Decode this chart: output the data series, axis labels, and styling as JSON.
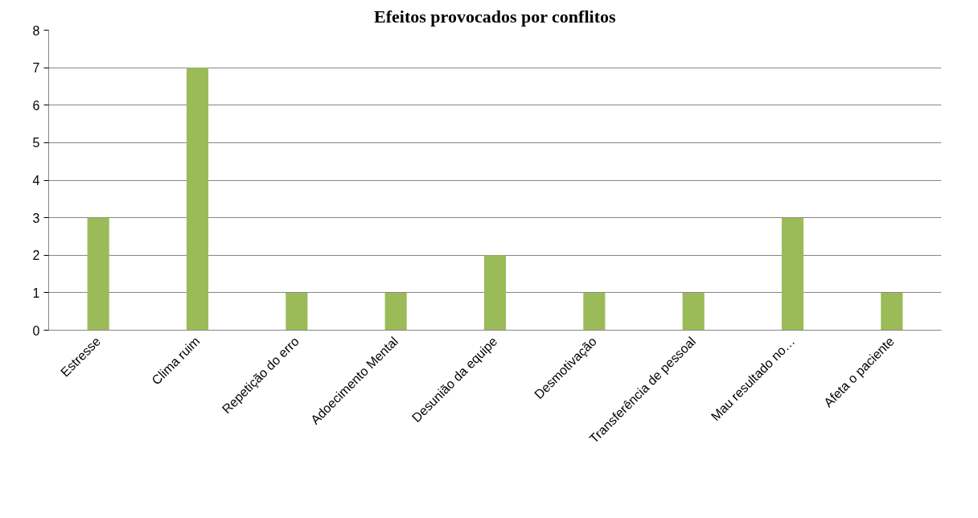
{
  "chart_data": {
    "type": "bar",
    "title": "Efeitos provocados por conflitos",
    "categories": [
      "Estresse",
      "Clima ruim",
      "Repetição do erro",
      "Adoecimento Mental",
      "Desunião da equipe",
      "Desmotivação",
      "Transferência de pessoal",
      "Mau resultado no…",
      "Afeta o paciente"
    ],
    "values": [
      3,
      7,
      1,
      1,
      2,
      1,
      1,
      3,
      1
    ],
    "color": "#9bbb59",
    "ylim": [
      0,
      8
    ],
    "yticks": [
      0,
      1,
      2,
      3,
      4,
      5,
      6,
      7,
      8
    ],
    "grid": "y"
  }
}
